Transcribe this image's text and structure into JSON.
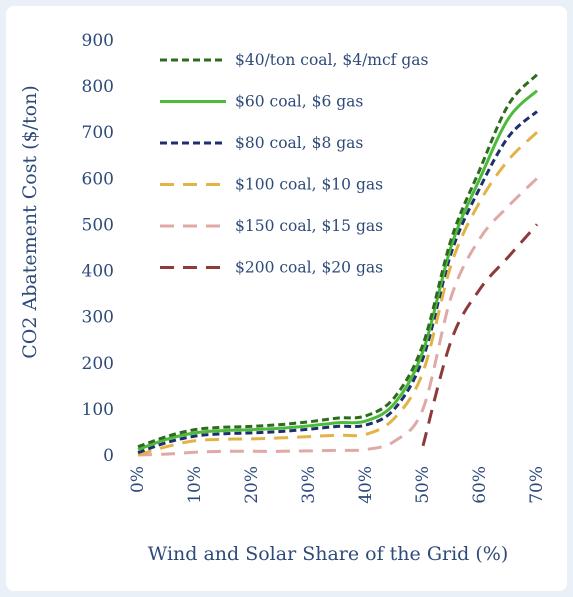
{
  "chart_data": {
    "type": "line",
    "title": "",
    "xlabel": "Wind and Solar Share of the Grid (%)",
    "ylabel": "CO2 Abatement Cost ($/ton)",
    "xlim": [
      0,
      70
    ],
    "ylim": [
      0,
      900
    ],
    "x_tick_labels": [
      "0%",
      "10%",
      "20%",
      "30%",
      "40%",
      "50%",
      "60%",
      "70%"
    ],
    "y_tick_labels": [
      "0",
      "100",
      "200",
      "300",
      "400",
      "500",
      "600",
      "700",
      "800",
      "900"
    ],
    "grid": false,
    "legend_position": "top-left-inside",
    "x": [
      0,
      5,
      10,
      15,
      20,
      25,
      30,
      35,
      40,
      45,
      50,
      55,
      60,
      65,
      70
    ],
    "series": [
      {
        "name": "$40/ton coal, $4/mcf gas",
        "color": "#2e6b1e",
        "dash": "short",
        "values": [
          18,
          40,
          55,
          60,
          62,
          66,
          72,
          80,
          85,
          125,
          240,
          470,
          620,
          760,
          825
        ]
      },
      {
        "name": "$60 coal, $6 gas",
        "color": "#4cbb3a",
        "dash": "solid",
        "values": [
          12,
          34,
          48,
          53,
          55,
          58,
          63,
          70,
          74,
          112,
          225,
          455,
          600,
          730,
          790
        ]
      },
      {
        "name": "$80 coal, $8 gas",
        "color": "#1f2f6e",
        "dash": "short",
        "values": [
          5,
          27,
          41,
          46,
          48,
          51,
          56,
          62,
          65,
          100,
          210,
          440,
          580,
          690,
          745
        ]
      },
      {
        "name": "$100 coal, $10 gas",
        "color": "#e2b347",
        "dash": "long",
        "values": [
          0,
          18,
          31,
          34,
          35,
          37,
          40,
          43,
          45,
          80,
          180,
          415,
          550,
          640,
          700
        ]
      },
      {
        "name": "$150 coal, $15 gas",
        "color": "#e0a9a6",
        "dash": "long",
        "values": [
          0,
          2,
          6,
          8,
          8,
          8,
          9,
          10,
          12,
          30,
          100,
          345,
          470,
          540,
          600
        ]
      },
      {
        "name": "$200 coal, $20 gas",
        "color": "#8e3a3a",
        "dash": "long",
        "values": [
          null,
          null,
          null,
          null,
          null,
          null,
          null,
          null,
          null,
          null,
          20,
          250,
          360,
          430,
          500
        ]
      }
    ]
  }
}
